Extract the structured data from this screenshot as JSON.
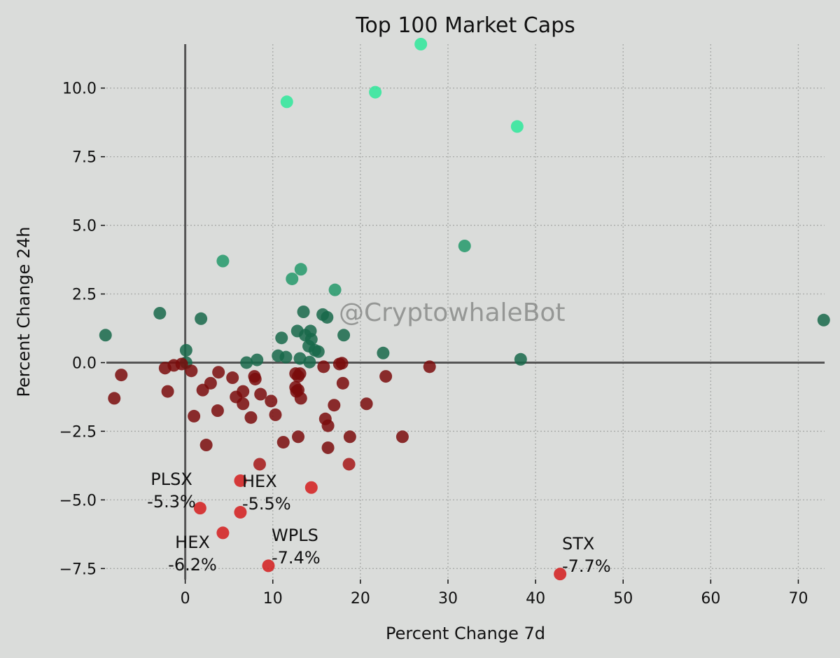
{
  "chart_data": {
    "type": "scatter",
    "title": "Top 100 Market Caps",
    "xlabel": "Percent Change 7d",
    "ylabel": "Percent Change 24h",
    "watermark": "@CryptowhaleBot",
    "xlim": [
      -9,
      73
    ],
    "ylim": [
      -7.9,
      11.6
    ],
    "x_ticks": [
      0,
      10,
      20,
      30,
      40,
      50,
      60,
      70
    ],
    "x_tick_labels": [
      "0",
      "10",
      "20",
      "30",
      "40",
      "50",
      "60",
      "70"
    ],
    "y_ticks": [
      -7.5,
      -5.0,
      -2.5,
      0.0,
      2.5,
      5.0,
      7.5,
      10.0
    ],
    "y_tick_labels": [
      "−7.5",
      "−5.0",
      "−2.5",
      "0.0",
      "2.5",
      "5.0",
      "7.5",
      "10.0"
    ],
    "grid": true,
    "colors": {
      "bright_green": "#2ee89a",
      "mid_green": "#23996a",
      "dark_green": "#17694a",
      "dark_red": "#7a0c0c",
      "mid_red": "#a51616",
      "bright_red": "#d41c1c",
      "axis_line": "#555555",
      "grid": "#a8aaa8"
    },
    "points": [
      {
        "x": 26.9,
        "y": 11.6
      },
      {
        "x": 21.7,
        "y": 9.85
      },
      {
        "x": 11.6,
        "y": 9.5
      },
      {
        "x": 37.9,
        "y": 8.6
      },
      {
        "x": 31.9,
        "y": 4.25
      },
      {
        "x": 4.3,
        "y": 3.7
      },
      {
        "x": 13.2,
        "y": 3.4
      },
      {
        "x": 12.2,
        "y": 3.05
      },
      {
        "x": 17.1,
        "y": 2.65
      },
      {
        "x": 13.5,
        "y": 1.85
      },
      {
        "x": -2.9,
        "y": 1.8
      },
      {
        "x": 15.7,
        "y": 1.75
      },
      {
        "x": 16.2,
        "y": 1.65
      },
      {
        "x": 1.8,
        "y": 1.6
      },
      {
        "x": 72.9,
        "y": 1.55
      },
      {
        "x": 12.8,
        "y": 1.15
      },
      {
        "x": 14.3,
        "y": 1.15
      },
      {
        "x": 13.7,
        "y": 1.0
      },
      {
        "x": 18.1,
        "y": 1.0
      },
      {
        "x": -9.1,
        "y": 1.0
      },
      {
        "x": 11.0,
        "y": 0.9
      },
      {
        "x": 14.4,
        "y": 0.85
      },
      {
        "x": 14.1,
        "y": 0.6
      },
      {
        "x": 14.8,
        "y": 0.45
      },
      {
        "x": 15.2,
        "y": 0.4
      },
      {
        "x": 22.6,
        "y": 0.35
      },
      {
        "x": 0.1,
        "y": 0.45
      },
      {
        "x": 10.6,
        "y": 0.25
      },
      {
        "x": 11.5,
        "y": 0.2
      },
      {
        "x": 13.1,
        "y": 0.15
      },
      {
        "x": 38.3,
        "y": 0.12
      },
      {
        "x": 8.2,
        "y": 0.1
      },
      {
        "x": 7.0,
        "y": 0.0
      },
      {
        "x": 0.1,
        "y": 0.0
      },
      {
        "x": -0.4,
        "y": -0.05
      },
      {
        "x": -1.3,
        "y": -0.1
      },
      {
        "x": -2.3,
        "y": -0.2
      },
      {
        "x": 14.2,
        "y": 0.02
      },
      {
        "x": 17.6,
        "y": -0.05
      },
      {
        "x": 17.9,
        "y": -0.02
      },
      {
        "x": 27.9,
        "y": -0.15
      },
      {
        "x": 15.8,
        "y": -0.15
      },
      {
        "x": 0.7,
        "y": -0.3
      },
      {
        "x": 3.8,
        "y": -0.35
      },
      {
        "x": 12.6,
        "y": -0.4
      },
      {
        "x": 13.1,
        "y": -0.4
      },
      {
        "x": 12.9,
        "y": -0.5
      },
      {
        "x": 22.9,
        "y": -0.5
      },
      {
        "x": -7.3,
        "y": -0.45
      },
      {
        "x": 5.4,
        "y": -0.55
      },
      {
        "x": 7.9,
        "y": -0.5
      },
      {
        "x": 8.0,
        "y": -0.6
      },
      {
        "x": 2.9,
        "y": -0.75
      },
      {
        "x": 18.0,
        "y": -0.75
      },
      {
        "x": 12.6,
        "y": -0.9
      },
      {
        "x": 12.9,
        "y": -1.0
      },
      {
        "x": 12.7,
        "y": -1.05
      },
      {
        "x": 2.0,
        "y": -1.0
      },
      {
        "x": 6.6,
        "y": -1.05
      },
      {
        "x": 8.6,
        "y": -1.15
      },
      {
        "x": -2.0,
        "y": -1.05
      },
      {
        "x": 5.8,
        "y": -1.25
      },
      {
        "x": 13.2,
        "y": -1.3
      },
      {
        "x": -8.1,
        "y": -1.3
      },
      {
        "x": 9.8,
        "y": -1.4
      },
      {
        "x": 6.6,
        "y": -1.5
      },
      {
        "x": 17.0,
        "y": -1.55
      },
      {
        "x": 20.7,
        "y": -1.5
      },
      {
        "x": 3.7,
        "y": -1.75
      },
      {
        "x": 10.3,
        "y": -1.9
      },
      {
        "x": 1.0,
        "y": -1.95
      },
      {
        "x": 7.5,
        "y": -2.0
      },
      {
        "x": 16.0,
        "y": -2.05
      },
      {
        "x": 16.3,
        "y": -2.3
      },
      {
        "x": 24.8,
        "y": -2.7
      },
      {
        "x": 12.9,
        "y": -2.7
      },
      {
        "x": 18.8,
        "y": -2.7
      },
      {
        "x": 11.2,
        "y": -2.9
      },
      {
        "x": 2.4,
        "y": -3.0
      },
      {
        "x": 16.3,
        "y": -3.1
      },
      {
        "x": 18.7,
        "y": -3.7
      },
      {
        "x": 8.5,
        "y": -3.7
      },
      {
        "x": 6.3,
        "y": -4.3
      },
      {
        "x": 14.4,
        "y": -4.55
      },
      {
        "x": 1.7,
        "y": -5.3
      },
      {
        "x": 6.3,
        "y": -5.45
      },
      {
        "x": 4.3,
        "y": -6.2
      },
      {
        "x": 9.5,
        "y": -7.4
      },
      {
        "x": 42.8,
        "y": -7.7
      }
    ],
    "annotations": [
      {
        "label": "PLSX",
        "value": "-5.3%"
      },
      {
        "label": "HEX",
        "value": "-5.5%"
      },
      {
        "label": "HEX",
        "value": "-6.2%"
      },
      {
        "label": "WPLS",
        "value": "-7.4%"
      },
      {
        "label": "STX",
        "value": "-7.7%"
      }
    ]
  }
}
